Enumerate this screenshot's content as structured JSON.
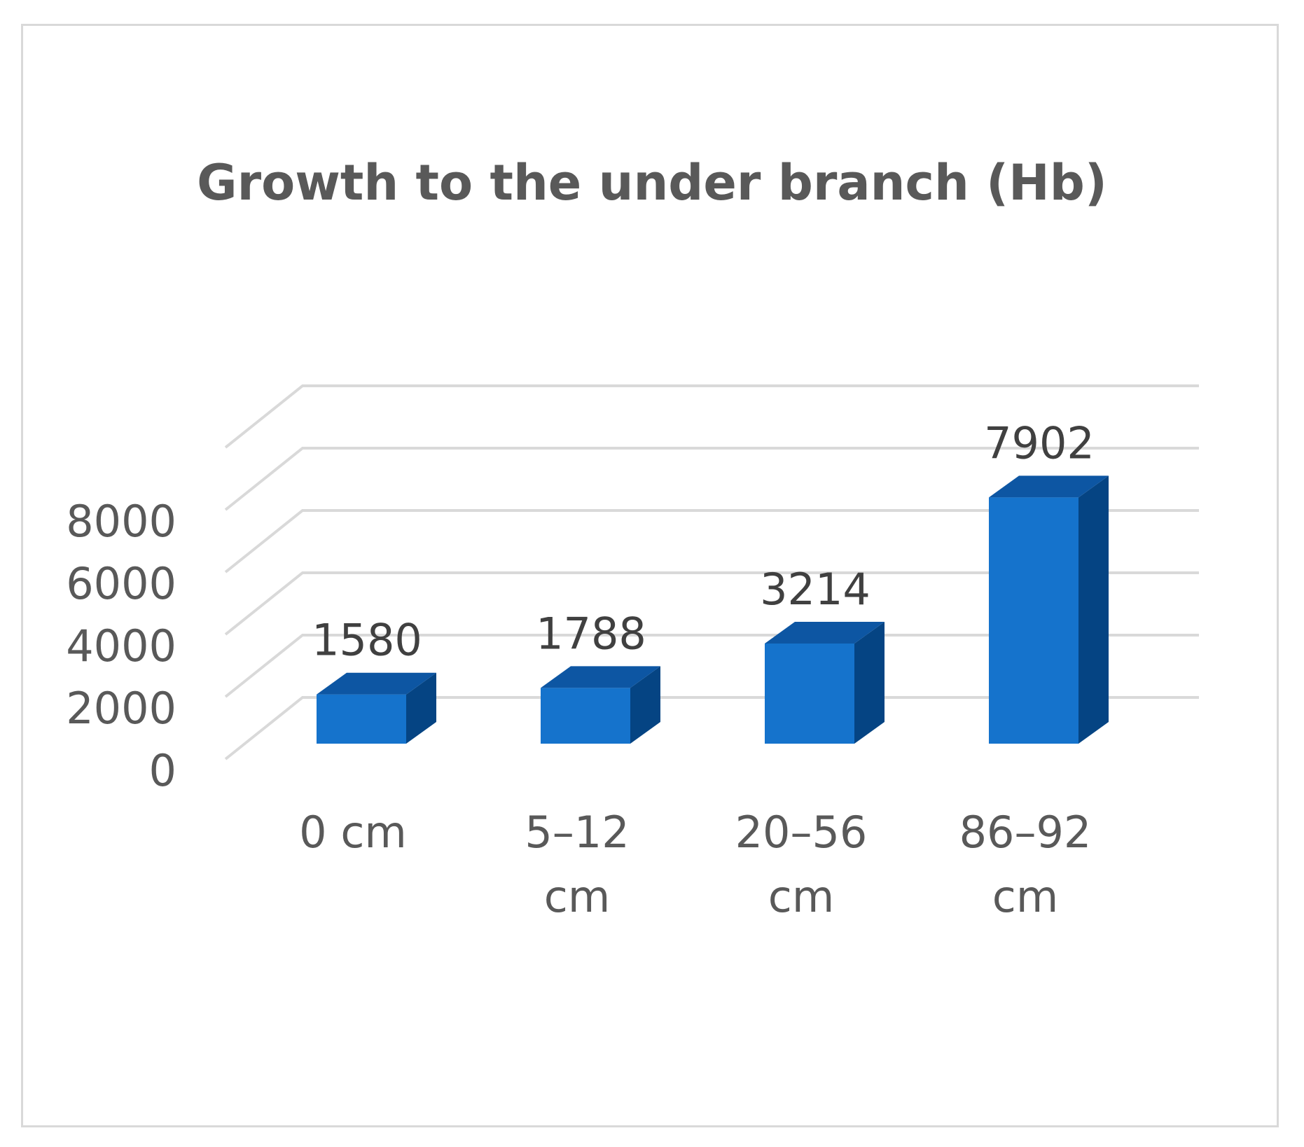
{
  "chart_data": {
    "type": "bar",
    "title": "Growth to the under branch (Hb)",
    "categories": [
      [
        "0 cm"
      ],
      [
        "5–12",
        "cm"
      ],
      [
        "20–56",
        "cm"
      ],
      [
        "86–92",
        "cm"
      ]
    ],
    "values": [
      1580,
      1788,
      3214,
      7902
    ],
    "data_labels": [
      "1580",
      "1788",
      "3214",
      "7902"
    ],
    "y_ticks": [
      0,
      2000,
      4000,
      6000,
      8000
    ],
    "ylim": [
      0,
      10000
    ],
    "grid": true,
    "legend": "none",
    "colors": {
      "front": "#1573cc",
      "side": "#054483",
      "top": "#0d56a3",
      "grid": "#d9d9d9"
    }
  }
}
